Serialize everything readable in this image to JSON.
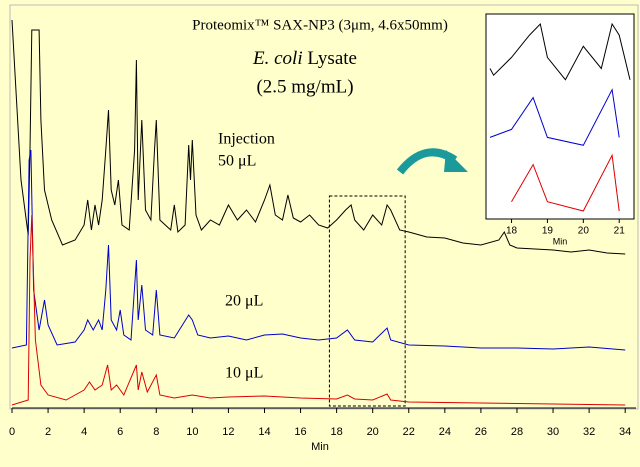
{
  "chart_data": {
    "type": "line",
    "title": "Proteomix™ SAX-NP3 (3μm, 4.6x50mm)",
    "subtitle_italic": "E. coli",
    "subtitle_rest": "Lysate",
    "subtitle2": "(2.5 mg/mL)",
    "annotations": [
      "Injection",
      "50 μL",
      "20 μL",
      "10 μL"
    ],
    "x_label": "Min",
    "xlim": [
      0,
      34.6
    ],
    "xticks": [
      0,
      2,
      4,
      6,
      8,
      10,
      12,
      14,
      16,
      18,
      20,
      22,
      24,
      26,
      28,
      30,
      32,
      34
    ],
    "ylim": [
      0,
      400
    ],
    "highlight_range": [
      17.6,
      21.8
    ],
    "inset": {
      "xlim": [
        17.4,
        21.3
      ],
      "xticks": [
        18,
        19,
        20,
        21
      ],
      "x_label": "Min"
    },
    "series": [
      {
        "name": "50 μL",
        "color": "#000000",
        "x": [
          0,
          0.5,
          0.9,
          1.0,
          1.1,
          1.5,
          1.6,
          1.8,
          2.2,
          2.8,
          3.5,
          4.0,
          4.2,
          4.4,
          4.6,
          4.8,
          5.0,
          5.2,
          5.35,
          5.5,
          5.7,
          5.9,
          6.1,
          6.5,
          6.8,
          6.9,
          7.0,
          7.2,
          7.4,
          7.7,
          7.9,
          8.0,
          8.2,
          8.8,
          9.0,
          9.2,
          9.6,
          9.8,
          9.9,
          10.0,
          10.2,
          10.5,
          11,
          11.5,
          12,
          12.5,
          13,
          13.5,
          14,
          14.3,
          14.6,
          15,
          15.3,
          15.6,
          16,
          16.5,
          17,
          17.5,
          18,
          18.5,
          18.8,
          19,
          19.5,
          20,
          20.5,
          20.8,
          21,
          21.5,
          22,
          23,
          24,
          25,
          26,
          27,
          27.3,
          27.6,
          28,
          30,
          31,
          32,
          33,
          34
        ],
        "values": [
          388,
          228,
          173,
          258,
          378,
          378,
          288,
          218,
          188,
          163,
          168,
          183,
          208,
          178,
          203,
          183,
          208,
          258,
          298,
          218,
          203,
          228,
          183,
          178,
          258,
          348,
          208,
          288,
          198,
          188,
          258,
          288,
          188,
          178,
          203,
          176,
          183,
          263,
          228,
          268,
          193,
          178,
          188,
          183,
          203,
          188,
          198,
          186,
          208,
          223,
          193,
          188,
          213,
          190,
          186,
          193,
          183,
          180,
          188,
          198,
          203,
          188,
          178,
          193,
          183,
          203,
          198,
          178,
          176,
          171,
          170,
          165,
          163,
          168,
          176,
          163,
          160,
          158,
          156,
          158,
          155,
          154
        ]
      },
      {
        "name": "20 μL",
        "color": "#0000cc",
        "x": [
          0,
          0.8,
          0.95,
          1.05,
          1.2,
          1.5,
          1.8,
          2.0,
          2.5,
          3.5,
          4.0,
          4.2,
          4.5,
          4.8,
          5.0,
          5.2,
          5.35,
          5.5,
          5.8,
          6.0,
          6.2,
          6.6,
          6.9,
          7.0,
          7.2,
          7.4,
          7.8,
          8.0,
          8.2,
          9,
          9.8,
          10,
          10.3,
          11,
          12,
          13,
          14,
          15,
          16,
          17,
          18,
          18.6,
          19,
          20,
          20.8,
          21,
          22,
          24,
          26,
          28,
          30,
          32,
          34
        ],
        "values": [
          60,
          63,
          248,
          258,
          118,
          78,
          108,
          83,
          63,
          66,
          78,
          88,
          78,
          88,
          78,
          118,
          163,
          88,
          78,
          98,
          73,
          68,
          148,
          88,
          123,
          78,
          73,
          118,
          73,
          70,
          93,
          88,
          73,
          70,
          72,
          68,
          73,
          74,
          70,
          68,
          70,
          78,
          68,
          66,
          80,
          68,
          63,
          62,
          60,
          60,
          59,
          61,
          58
        ]
      },
      {
        "name": "10 μL",
        "color": "#dd0000",
        "x": [
          0,
          0.9,
          1.0,
          1.1,
          1.3,
          1.6,
          2,
          3,
          3.5,
          4.0,
          4.3,
          4.6,
          5.0,
          5.3,
          5.5,
          5.8,
          6.2,
          6.9,
          7.0,
          7.2,
          7.5,
          8.0,
          8.2,
          9,
          10,
          11,
          12,
          14,
          16,
          18,
          18.6,
          19,
          20,
          20.8,
          21,
          22,
          26,
          30,
          34
        ],
        "values": [
          3,
          8,
          148,
          193,
          68,
          23,
          13,
          8,
          13,
          18,
          26,
          18,
          23,
          43,
          18,
          23,
          13,
          43,
          18,
          36,
          16,
          33,
          13,
          10,
          13,
          10,
          11,
          12,
          10,
          9,
          13,
          9,
          8,
          14,
          8,
          6,
          5,
          4,
          3
        ]
      }
    ]
  }
}
